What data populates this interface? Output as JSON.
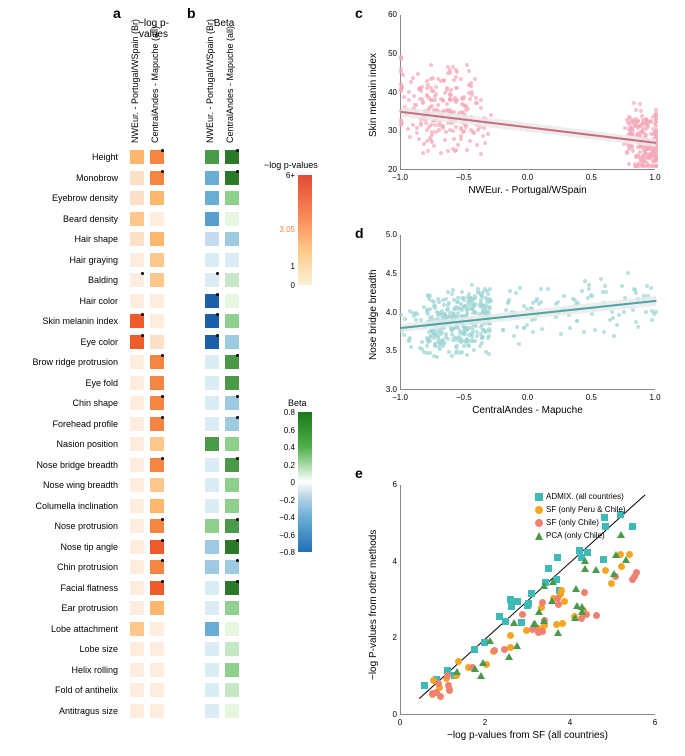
{
  "panel_a": {
    "label": "a",
    "section_title": "−log p-values",
    "col_headers": [
      "NWEur. - Portugal/WSpain (Br)",
      "CentralAndes - Mapuche (all)"
    ]
  },
  "panel_b": {
    "label": "b",
    "section_title": "Beta",
    "col_headers": [
      "NWEur. - Portugal/WSpain (Br)",
      "CentralAndes - Mapuche (all)"
    ]
  },
  "row_labels": [
    "Height",
    "Monobrow",
    "Eyebrow density",
    "Beard density",
    "Hair shape",
    "Hair graying",
    "Balding",
    "Hair color",
    "Skin melanin index",
    "Eye color",
    "Brow ridge protrusion",
    "Eye fold",
    "Chin shape",
    "Forehead profile",
    "Nasion position",
    "Nose bridge breadth",
    "Nose wing breadth",
    "Columella inclination",
    "Nose protrusion",
    "Nose tip angle",
    "Chin protrusion",
    "Facial flatness",
    "Ear protrusion",
    "Lobe attachment",
    "Lobe size",
    "Helix rolling",
    "Fold of antihelix",
    "Antitragus size"
  ],
  "heatmap_a": {
    "colors_col1": [
      "#fdb76d",
      "#fde0c8",
      "#fde0c8",
      "#fdc88c",
      "#fde0c8",
      "#feedde",
      "#feedde",
      "#feedde",
      "#ee5c2c",
      "#ee5c2c",
      "#feedde",
      "#feedde",
      "#feedde",
      "#feedde",
      "#feedde",
      "#feedde",
      "#feedde",
      "#feedde",
      "#feedde",
      "#feedde",
      "#feedde",
      "#feedde",
      "#feedde",
      "#fdc88c",
      "#feedde",
      "#feedde",
      "#feedde",
      "#feedde"
    ],
    "colors_col2": [
      "#f58540",
      "#f58540",
      "#fdb76d",
      "#feedde",
      "#fdb76d",
      "#fdc88c",
      "#fdc88c",
      "#feedde",
      "#feedde",
      "#fde0c8",
      "#f58540",
      "#f58540",
      "#f58540",
      "#f58540",
      "#fdc88c",
      "#f58540",
      "#fdc88c",
      "#fdb76d",
      "#f58540",
      "#ee5c2c",
      "#f58540",
      "#ee5c2c",
      "#fdb76d",
      "#feedde",
      "#feedde",
      "#feedde",
      "#feedde",
      "#feedde"
    ],
    "dots_col1": [
      false,
      false,
      false,
      false,
      false,
      false,
      true,
      false,
      true,
      true,
      false,
      false,
      false,
      false,
      false,
      false,
      false,
      false,
      false,
      false,
      false,
      false,
      false,
      false,
      false,
      false,
      false,
      false
    ],
    "dots_col2": [
      true,
      true,
      false,
      false,
      false,
      false,
      false,
      false,
      false,
      false,
      true,
      false,
      true,
      true,
      false,
      true,
      false,
      false,
      true,
      true,
      true,
      true,
      false,
      false,
      false,
      false,
      false,
      false
    ]
  },
  "heatmap_b": {
    "colors_col1": [
      "#4a9a4a",
      "#6aaed6",
      "#6aaed6",
      "#5a9ed0",
      "#c6dbef",
      "#dcecf5",
      "#dcecf5",
      "#1c5ea8",
      "#1c5ea8",
      "#1c5ea8",
      "#dcecf5",
      "#dcecf5",
      "#dcecf5",
      "#dcecf5",
      "#4a9a4a",
      "#dcecf5",
      "#dcecf5",
      "#dcecf5",
      "#8fd08f",
      "#9ecae1",
      "#9ecae1",
      "#dcecf5",
      "#dcecf5",
      "#6aaed6",
      "#dcecf5",
      "#dcecf5",
      "#dcecf5",
      "#dcecf5"
    ],
    "colors_col2": [
      "#2a7a2a",
      "#2a7a2a",
      "#8fd08f",
      "#e5f5e0",
      "#9ecae1",
      "#dcecf5",
      "#c6e8c6",
      "#e5f5e0",
      "#8fd08f",
      "#9ecae1",
      "#4a9a4a",
      "#4a9a4a",
      "#9ecae1",
      "#9ecae1",
      "#8fd08f",
      "#4a9a4a",
      "#8fd08f",
      "#8fd08f",
      "#4a9a4a",
      "#2a7a2a",
      "#9ecae1",
      "#2a7a2a",
      "#8fd08f",
      "#e5f5e0",
      "#c6e8c6",
      "#8fd08f",
      "#c6e8c6",
      "#e5f5e0"
    ],
    "dots_col1": [
      false,
      false,
      false,
      false,
      false,
      false,
      true,
      true,
      true,
      true,
      false,
      false,
      false,
      false,
      false,
      false,
      false,
      false,
      false,
      false,
      false,
      false,
      false,
      false,
      false,
      false,
      false,
      false
    ],
    "dots_col2": [
      true,
      true,
      false,
      false,
      false,
      false,
      false,
      false,
      false,
      false,
      true,
      false,
      true,
      true,
      false,
      true,
      false,
      false,
      true,
      true,
      true,
      true,
      false,
      false,
      false,
      false,
      false,
      false
    ]
  },
  "colorbar_pval": {
    "label": "−log p-values",
    "ticks": [
      "6+",
      "3.05",
      "1",
      "0"
    ],
    "tick_positions": [
      0,
      0.49,
      0.83,
      1.0
    ],
    "gradient": "linear-gradient(to bottom, #e34a33 0%, #fc8d59 40%, #fdcc8a 70%, #fef0d9 100%)"
  },
  "colorbar_beta": {
    "label": "Beta",
    "ticks": [
      "0.8",
      "0.6",
      "0.4",
      "0.2",
      "0",
      "−0.2",
      "−0.4",
      "−0.6",
      "−0.8"
    ],
    "gradient": "linear-gradient(to bottom, #1a7a1a 0%, #4daf4a 25%, #b8e0b8 40%, #ffffff 50%, #bdd7e7 60%, #6baed6 75%, #2171b5 100%)"
  },
  "panel_c": {
    "label": "c",
    "xlabel": "NWEur. - Portugal/WSpain",
    "ylabel": "Skin melanin index",
    "xlim": [
      -1.0,
      1.0
    ],
    "ylim": [
      20,
      60
    ],
    "xticks": [
      "−1.0",
      "−0.5",
      "0.0",
      "0.5",
      "1.0"
    ],
    "yticks": [
      "20",
      "30",
      "40",
      "50",
      "60"
    ],
    "point_color": "#f4a8b8",
    "line_color": "#c96d7e",
    "band_color": "#e8e8e8",
    "line": {
      "x1": -1.0,
      "y1": 35,
      "x2": 1.0,
      "y2": 27
    },
    "n_points": 450,
    "seed": 42
  },
  "panel_d": {
    "label": "d",
    "xlabel": "CentralAndes - Mapuche",
    "ylabel": "Nose bridge breadth",
    "xlim": [
      -1.0,
      1.0
    ],
    "ylim": [
      3.0,
      5.0
    ],
    "xticks": [
      "−1.0",
      "−0.5",
      "0.0",
      "0.5",
      "1.0"
    ],
    "yticks": [
      "3.0",
      "3.5",
      "4.0",
      "4.5",
      "5.0"
    ],
    "point_color": "#9dd4d4",
    "line_color": "#4aa5a5",
    "band_color": "#e8e8e8",
    "line": {
      "x1": -1.0,
      "y1": 3.8,
      "x2": 1.0,
      "y2": 4.15
    },
    "n_points": 450,
    "seed": 7
  },
  "panel_e": {
    "label": "e",
    "xlabel": "−log p-values from SF (all countries)",
    "ylabel": "−log P-values from other methods",
    "xlim": [
      -0.5,
      6.5
    ],
    "ylim": [
      -0.5,
      6.5
    ],
    "xticks": [
      "0",
      "2",
      "4",
      "6"
    ],
    "yticks": [
      "0",
      "2",
      "4",
      "6"
    ],
    "legend": [
      {
        "label": "ADMIX. (all countries)",
        "color": "#3fb8b8",
        "shape": "square"
      },
      {
        "label": "SF (only Peru & Chile)",
        "color": "#f5a623",
        "shape": "circle"
      },
      {
        "label": "SF (only Chile)",
        "color": "#f08070",
        "shape": "circle"
      },
      {
        "label": "PCA (only Chile)",
        "color": "#4a9a4a",
        "shape": "triangle"
      }
    ],
    "diag_color": "#000000",
    "n_points_per_series": 28,
    "seed": 11
  }
}
